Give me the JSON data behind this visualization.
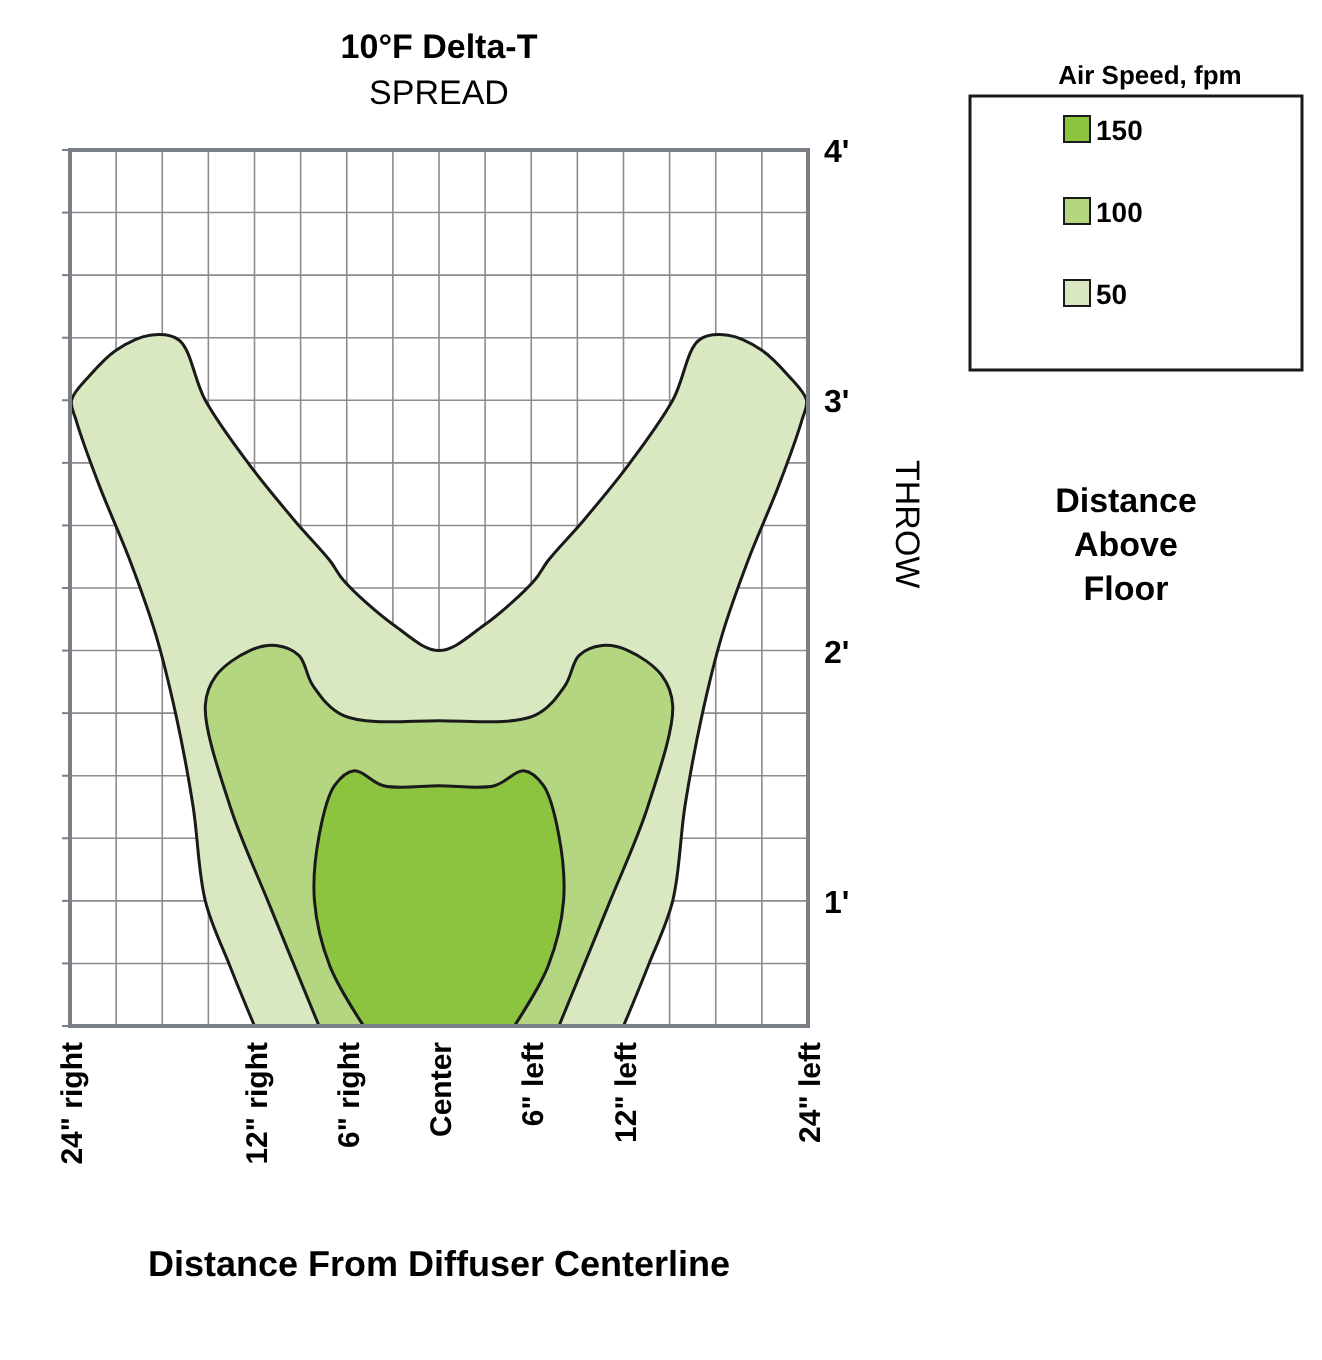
{
  "chart_data": {
    "type": "area",
    "title": "10°F Delta-T",
    "subtitle": "SPREAD",
    "xlabel": "Distance From Diffuser Centerline",
    "ylabel": "THROW",
    "annotations": [
      "Distance Above Floor"
    ],
    "legend_title": "Air Speed, fpm",
    "legend": "top right",
    "grid": true,
    "xlim": [
      -24,
      24
    ],
    "ylim": [
      0.5,
      4
    ],
    "xticks": [
      {
        "value": -24,
        "label": "24\" right"
      },
      {
        "value": -21,
        "label": null
      },
      {
        "value": -18,
        "label": null
      },
      {
        "value": -15,
        "label": null
      },
      {
        "value": -12,
        "label": "12\" right"
      },
      {
        "value": -9,
        "label": null
      },
      {
        "value": -6,
        "label": "6\" right"
      },
      {
        "value": -3,
        "label": null
      },
      {
        "value": 0,
        "label": "Center"
      },
      {
        "value": 3,
        "label": null
      },
      {
        "value": 6,
        "label": "6\" left"
      },
      {
        "value": 9,
        "label": null
      },
      {
        "value": 12,
        "label": "12\" left"
      },
      {
        "value": 15,
        "label": null
      },
      {
        "value": 18,
        "label": null
      },
      {
        "value": 21,
        "label": null
      },
      {
        "value": 24,
        "label": "24\" left"
      }
    ],
    "yticks": [
      {
        "value": 0.5,
        "label": null
      },
      {
        "value": 0.75,
        "label": null
      },
      {
        "value": 1,
        "label": "1'"
      },
      {
        "value": 1.25,
        "label": null
      },
      {
        "value": 1.5,
        "label": null
      },
      {
        "value": 1.75,
        "label": null
      },
      {
        "value": 2,
        "label": "2'"
      },
      {
        "value": 2.25,
        "label": null
      },
      {
        "value": 2.5,
        "label": null
      },
      {
        "value": 2.75,
        "label": null
      },
      {
        "value": 3,
        "label": "3'"
      },
      {
        "value": 3.25,
        "label": null
      },
      {
        "value": 3.5,
        "label": null
      },
      {
        "value": 3.75,
        "label": null
      },
      {
        "value": 4,
        "label": "4'"
      }
    ],
    "series": [
      {
        "name": "150",
        "color": "#8cc43f",
        "x": [
          -4.9,
          -7.1,
          -8.1,
          -7.8,
          -6.8,
          -5.5,
          -3.6,
          0,
          3.6,
          5.5,
          6.8,
          7.8,
          8.1,
          7.1,
          4.9
        ],
        "values": [
          0.5,
          0.74,
          1.0,
          1.26,
          1.46,
          1.52,
          1.46,
          1.46,
          1.46,
          1.52,
          1.46,
          1.26,
          1.0,
          0.74,
          0.5
        ]
      },
      {
        "name": "100",
        "color": "#b5d680",
        "x": [
          -7.8,
          -11,
          -13.6,
          -15.2,
          -14.5,
          -12.3,
          -10.6,
          -9.1,
          -8.2,
          -6.2,
          0,
          6.2,
          8.2,
          9.1,
          10.6,
          12.3,
          14.5,
          15.2,
          13.6,
          11,
          7.8
        ],
        "values": [
          0.5,
          0.98,
          1.38,
          1.78,
          1.9,
          2.0,
          2.02,
          1.98,
          1.86,
          1.74,
          1.72,
          1.74,
          1.86,
          1.98,
          2.02,
          2.0,
          1.9,
          1.78,
          1.38,
          0.98,
          0.5
        ]
      },
      {
        "name": "50",
        "color": "#d9e8c1",
        "x": [
          -12,
          -13.6,
          -15.2,
          -16,
          -17.1,
          -18.4,
          -20.1,
          -22.1,
          -23.6,
          -23.9,
          -22.7,
          -21,
          -18.8,
          -16.9,
          -15.2,
          -12.3,
          -9.4,
          -7.1,
          -6.2,
          -2.9,
          0,
          2.9,
          6.2,
          7.1,
          9.4,
          12.3,
          15.2,
          16.9,
          18.8,
          21,
          22.7,
          23.9,
          23.6,
          22.1,
          20.1,
          18.4,
          17.1,
          16,
          15.2,
          13.6,
          12
        ],
        "values": [
          0.5,
          0.74,
          1.0,
          1.38,
          1.74,
          2.06,
          2.36,
          2.66,
          2.92,
          3.0,
          3.1,
          3.2,
          3.26,
          3.24,
          3.0,
          2.74,
          2.52,
          2.36,
          2.28,
          2.1,
          2.0,
          2.1,
          2.28,
          2.36,
          2.52,
          2.74,
          3.0,
          3.24,
          3.26,
          3.2,
          3.1,
          3.0,
          2.92,
          2.66,
          2.36,
          2.06,
          1.74,
          1.38,
          1.0,
          0.74,
          0.5
        ]
      }
    ]
  }
}
